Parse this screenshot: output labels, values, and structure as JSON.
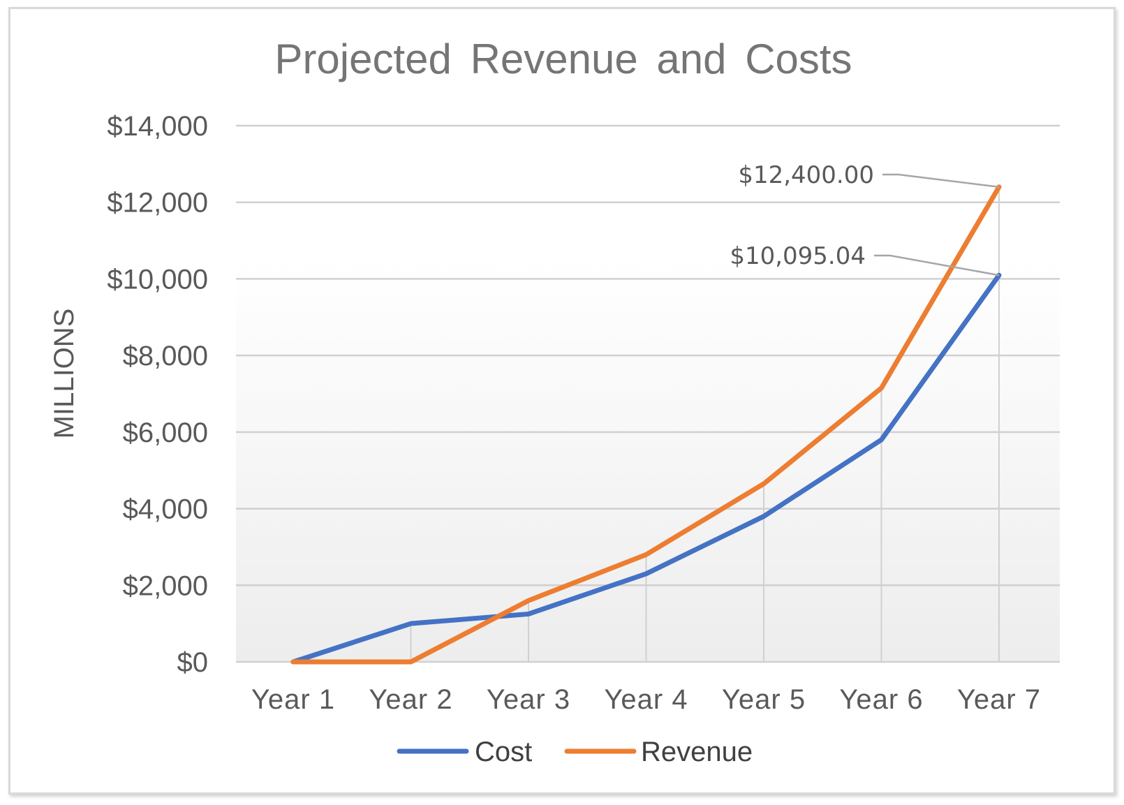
{
  "chart_data": {
    "type": "line",
    "title": "Projected Revenue and Costs",
    "xlabel": "",
    "ylabel": "MILLIONS",
    "categories": [
      "Year 1",
      "Year 2",
      "Year 3",
      "Year 4",
      "Year 5",
      "Year 6",
      "Year 7"
    ],
    "ylim": [
      0,
      14000
    ],
    "ytick_labels": [
      "$0",
      "$2,000",
      "$4,000",
      "$6,000",
      "$8,000",
      "$10,000",
      "$12,000",
      "$14,000"
    ],
    "grid": true,
    "legend_position": "bottom",
    "series": [
      {
        "name": "Cost",
        "color": "#4472c4",
        "values": [
          0,
          1000,
          1250,
          2300,
          3800,
          5800,
          10095.04
        ]
      },
      {
        "name": "Revenue",
        "color": "#ed7d31",
        "values": [
          0,
          0,
          1600,
          2800,
          4650,
          7150,
          12400
        ]
      }
    ],
    "data_labels": [
      {
        "series": "Revenue",
        "category": "Year 7",
        "text": "$12,400.00"
      },
      {
        "series": "Cost",
        "category": "Year 7",
        "text": "$10,095.04"
      }
    ]
  }
}
